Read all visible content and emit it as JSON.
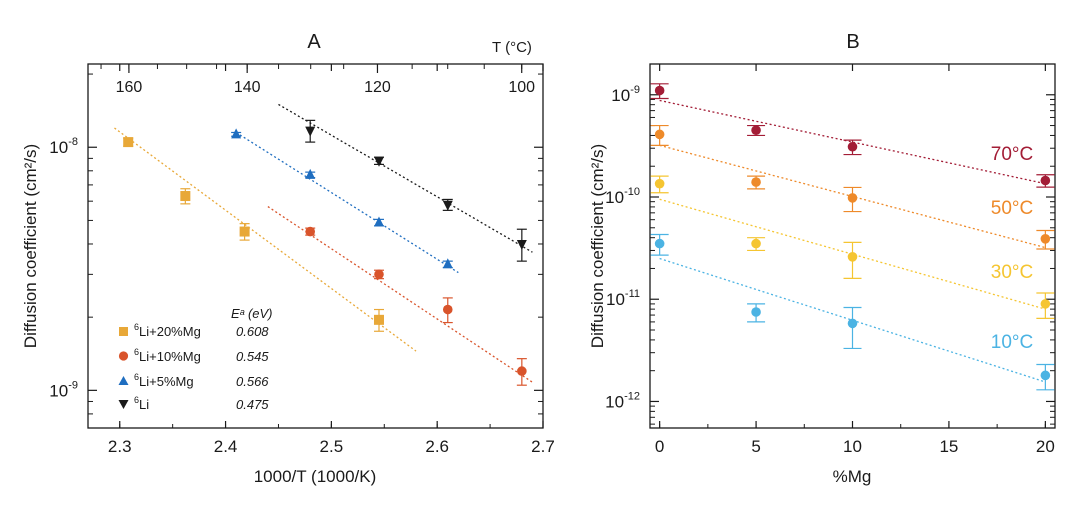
{
  "chart_data": [
    {
      "panel": "A",
      "type": "scatter",
      "title": "A",
      "xlabel": "1000/T (1000/K)",
      "ylabel": "Diffusion coefficient (cm²/s)",
      "yscale": "log",
      "xlim": [
        2.27,
        2.7
      ],
      "ylim": [
        7e-10,
        2.2e-08
      ],
      "xticks": [
        2.3,
        2.4,
        2.5,
        2.6,
        2.7
      ],
      "yticks": [
        {
          "value": 1e-08,
          "base": "10",
          "exp": "-8"
        },
        {
          "value": 1e-09,
          "base": "10",
          "exp": "-9"
        }
      ],
      "top_axis": {
        "label": "T (°C)",
        "ticks": [
          160,
          140,
          120,
          100
        ]
      },
      "legend_header": "Eᵃ (eV)",
      "series": [
        {
          "name": "Li+20%Mg",
          "iso": "6",
          "marker": "square",
          "color": "#E8A838",
          "ea": "0.608",
          "x": [
            2.308,
            2.362,
            2.418,
            2.545
          ],
          "y": [
            1.05e-08,
            6.3e-09,
            4.5e-09,
            1.95e-09
          ],
          "err": [
            4e-10,
            4.5e-10,
            3.5e-10,
            2e-10
          ],
          "fit": {
            "x": [
              2.295,
              2.58
            ],
            "y": [
              1.2e-08,
              1.45e-09
            ]
          }
        },
        {
          "name": "Li+10%Mg",
          "iso": "6",
          "marker": "circle",
          "color": "#D9542B",
          "ea": "0.545",
          "x": [
            2.48,
            2.545,
            2.61,
            2.68
          ],
          "y": [
            4.5e-09,
            3e-09,
            2.15e-09,
            1.2e-09
          ],
          "err": [
            1.5e-10,
            1.2e-10,
            2.5e-10,
            1.5e-10
          ],
          "fit": {
            "x": [
              2.44,
              2.69
            ],
            "y": [
              5.7e-09,
              1.08e-09
            ]
          }
        },
        {
          "name": "Li+5%Mg",
          "iso": "6",
          "marker": "triangle-up",
          "color": "#1F6EC0",
          "ea": "0.566",
          "x": [
            2.41,
            2.48,
            2.545,
            2.61
          ],
          "y": [
            1.13e-08,
            7.7e-09,
            4.9e-09,
            3.3e-09
          ],
          "err": [
            2e-10,
            2e-10,
            1.5e-10,
            1e-10
          ],
          "fit": {
            "x": [
              2.41,
              2.62
            ],
            "y": [
              1.15e-08,
              3.05e-09
            ]
          }
        },
        {
          "name": "Li",
          "iso": "6",
          "marker": "triangle-down",
          "color": "#1a1a1a",
          "ea": "0.475",
          "x": [
            2.48,
            2.545,
            2.61,
            2.68
          ],
          "y": [
            1.17e-08,
            8.8e-09,
            5.8e-09,
            4e-09
          ],
          "err": [
            1.2e-09,
            3e-10,
            3e-10,
            6e-10
          ],
          "fit": {
            "x": [
              2.45,
              2.69
            ],
            "y": [
              1.5e-08,
              3.7e-09
            ]
          }
        }
      ]
    },
    {
      "panel": "B",
      "type": "scatter",
      "title": "B",
      "xlabel": "%Mg",
      "ylabel": "Diffusion coefficient (cm²/s)",
      "yscale": "log",
      "xlim": [
        -0.5,
        20.5
      ],
      "ylim": [
        5.5e-13,
        2e-09
      ],
      "xticks": [
        0,
        5,
        10,
        15,
        20
      ],
      "yticks": [
        {
          "value": 1e-09,
          "base": "10",
          "exp": "-9"
        },
        {
          "value": 1e-10,
          "base": "10",
          "exp": "-10"
        },
        {
          "value": 1e-11,
          "base": "10",
          "exp": "-11"
        },
        {
          "value": 1e-12,
          "base": "10",
          "exp": "-12"
        }
      ],
      "series": [
        {
          "name": "70°C",
          "color": "#A31D36",
          "x": [
            0,
            5,
            10,
            20
          ],
          "y": [
            1.1e-09,
            4.5e-10,
            3.1e-10,
            1.45e-10
          ],
          "err": [
            1.8e-10,
            5e-11,
            5e-11,
            2e-11
          ],
          "fit": {
            "x": [
              0,
              20
            ],
            "y": [
              8.8e-10,
              1.35e-10
            ]
          }
        },
        {
          "name": "50°C",
          "color": "#EE8A2A",
          "x": [
            0,
            5,
            10,
            20
          ],
          "y": [
            4.1e-10,
            1.4e-10,
            9.8e-11,
            3.9e-11
          ],
          "err": [
            9e-11,
            2e-11,
            2.6e-11,
            8e-12
          ],
          "fit": {
            "x": [
              0,
              20
            ],
            "y": [
              3.2e-10,
              3.2e-11
            ]
          }
        },
        {
          "name": "30°C",
          "color": "#F5C531",
          "x": [
            0,
            5,
            10,
            20
          ],
          "y": [
            1.35e-10,
            3.5e-11,
            2.6e-11,
            9e-12
          ],
          "err": [
            2.5e-11,
            5e-12,
            1e-11,
            2.5e-12
          ],
          "fit": {
            "x": [
              0,
              20
            ],
            "y": [
              9.5e-11,
              8e-12
            ]
          }
        },
        {
          "name": "10°C",
          "color": "#4BB3E3",
          "x": [
            0,
            5,
            10,
            20
          ],
          "y": [
            3.5e-11,
            7.5e-12,
            5.8e-12,
            1.8e-12
          ],
          "err": [
            8e-12,
            1.5e-12,
            2.5e-12,
            5e-13
          ],
          "fit": {
            "x": [
              0,
              20
            ],
            "y": [
              2.5e-11,
              1.55e-12
            ]
          }
        }
      ]
    }
  ]
}
